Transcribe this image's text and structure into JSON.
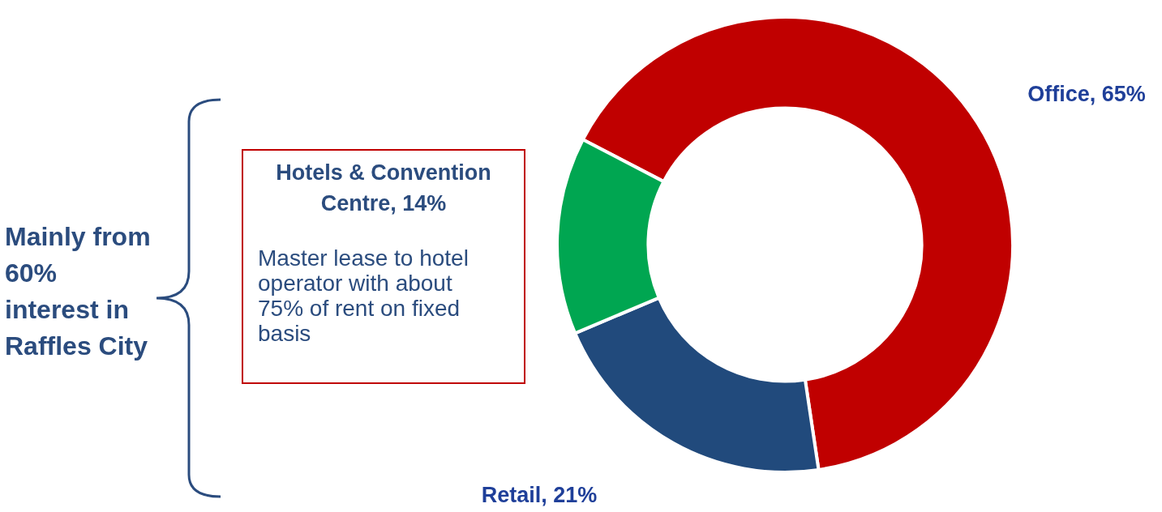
{
  "chart_data": {
    "type": "donut",
    "categories": [
      "Office, 65%",
      "Retail, 21%",
      "Hotels & Convention Centre, 14%"
    ],
    "values": [
      65,
      21,
      14
    ],
    "colors": [
      "#c00000",
      "#214a7c",
      "#00a651"
    ],
    "legend": false,
    "annotations": [
      "Master lease to hotel operator with about 75% of rent on fixed basis",
      "Mainly from 60% interest in Raffles City"
    ]
  }
}
